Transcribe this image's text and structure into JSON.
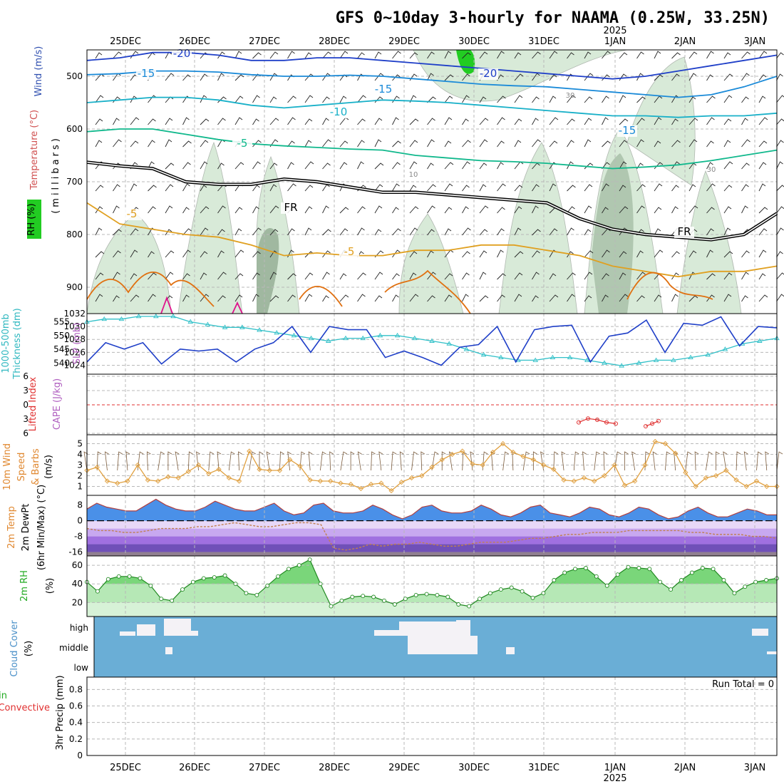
{
  "title": "GFS 0~10day 3-hourly for NAAMA (0.25W, 33.25N)",
  "dates": [
    "25DEC",
    "26DEC",
    "27DEC",
    "28DEC",
    "29DEC",
    "30DEC",
    "31DEC",
    "1JAN",
    "2JAN",
    "3JAN"
  ],
  "year_label": "2025",
  "colors": {
    "temp_hi": "#6e0aa8",
    "temp_20": "#1f3fc8",
    "temp_15": "#1a8ad8",
    "temp_10": "#18b0c8",
    "temp_5": "#10b88c",
    "freezing": "#000000",
    "temp_m5": "#e0a020",
    "temp_m10": "#e07010",
    "temp_m15": "#e0108c",
    "rh_fill": "#d8ead8",
    "rh_dark": "#a0b8a0",
    "rh_green": "#22cc22",
    "slp": "#1f3fc8",
    "thickness": "#30c0c8",
    "lifted": "#e03030",
    "wind10": "#e0a040",
    "temp2m": "#4a90e8",
    "cloud": "#6aaed6",
    "grid": "#b8b8b8"
  },
  "chart_data": [
    {
      "type": "line",
      "panel": "upper_air",
      "left_labels": [
        "Wind (m/s)",
        "Temperature (°C)",
        "RH (%)"
      ],
      "ylabel": "(millibars)",
      "yticks": [
        500,
        600,
        700,
        800,
        900
      ],
      "ylim": [
        450,
        950
      ],
      "isotherm_labels": [
        "-20",
        "-15",
        "-20",
        "-15",
        "-10",
        "-15",
        "-5",
        "-5",
        "-5",
        "FR",
        "FR"
      ],
      "rh_labels": [
        "30",
        "10",
        "30"
      ],
      "series": [
        {
          "name": "-20",
          "values": [
            470,
            465,
            455,
            455,
            460,
            470,
            470,
            465,
            465,
            470,
            475,
            480,
            485,
            490,
            495,
            500,
            505,
            500,
            490,
            480,
            470,
            460
          ]
        },
        {
          "name": "-15",
          "values": [
            497,
            495,
            490,
            490,
            492,
            497,
            500,
            500,
            498,
            500,
            505,
            510,
            515,
            518,
            520,
            525,
            530,
            535,
            540,
            535,
            520,
            500
          ]
        },
        {
          "name": "-10",
          "values": [
            550,
            545,
            540,
            540,
            545,
            555,
            560,
            555,
            550,
            545,
            547,
            550,
            555,
            560,
            565,
            570,
            575,
            575,
            578,
            575,
            575,
            570
          ]
        },
        {
          "name": "-5",
          "values": [
            605,
            600,
            600,
            610,
            620,
            628,
            632,
            635,
            638,
            640,
            650,
            655,
            660,
            662,
            665,
            670,
            675,
            672,
            668,
            660,
            650,
            640
          ]
        },
        {
          "name": "FR",
          "values": [
            663,
            670,
            675,
            700,
            705,
            705,
            695,
            700,
            710,
            720,
            720,
            725,
            730,
            735,
            740,
            770,
            790,
            800,
            805,
            810,
            800,
            760
          ]
        },
        {
          "name": "5",
          "values": [
            740,
            780,
            790,
            800,
            805,
            820,
            840,
            835,
            840,
            840,
            830,
            830,
            820,
            820,
            830,
            840,
            860,
            870,
            880,
            870,
            870,
            860
          ]
        }
      ]
    },
    {
      "type": "line",
      "panel": "slp_thickness",
      "left_labels": [
        "1000-500mb",
        "Thickness (dm)",
        "SLP (mb)"
      ],
      "yticks_left": [
        540,
        545,
        550,
        555
      ],
      "yticks_right": [
        1024,
        1026,
        1028,
        1030,
        1032
      ],
      "series": [
        {
          "name": "SLP",
          "values": [
            1024.5,
            1027.5,
            1026.5,
            1027.5,
            1024.2,
            1026.5,
            1026.2,
            1026.5,
            1024.5,
            1026.5,
            1027.5,
            1030,
            1026,
            1030,
            1029.5,
            1029.5,
            1025.2,
            1026.2,
            1025.2,
            1024,
            1026.8,
            1027.2,
            1030,
            1024.5,
            1029.5,
            1030,
            1030.2,
            1024.5,
            1028.5,
            1029,
            1031,
            1026,
            1030.5,
            1030.2,
            1031.5,
            1027,
            1030,
            1029.8
          ]
        },
        {
          "name": "Thickness",
          "values": [
            555,
            556,
            556,
            557,
            557,
            557,
            555,
            554,
            553,
            553,
            552,
            551,
            550,
            549,
            548,
            549,
            549,
            550,
            550,
            549,
            548,
            547,
            545,
            543,
            542,
            541,
            541,
            542,
            542,
            541,
            540,
            539,
            540,
            541,
            541,
            542,
            543,
            545,
            547,
            548,
            549
          ]
        }
      ]
    },
    {
      "type": "line",
      "panel": "cape_li",
      "left_labels": [
        "Lifted Index",
        "CAPE (J/kg)"
      ],
      "yticks": [
        "6",
        "3",
        "0",
        "3",
        "6"
      ],
      "series": [
        {
          "name": "Lifted Index",
          "values": [
            5.5,
            5.2,
            5.3,
            5.5,
            5.6,
            5.8,
            5.6,
            5.4,
            5.5
          ]
        }
      ]
    },
    {
      "type": "line",
      "panel": "wind10m",
      "left_labels": [
        "10m Wind",
        "Speed",
        "& Barbs",
        "(m/s)"
      ],
      "yticks": [
        1,
        2,
        3,
        4,
        5
      ],
      "ylim": [
        0.5,
        5.5
      ],
      "series": [
        {
          "name": "10m Wind Speed",
          "values": [
            2.5,
            2.8,
            1.5,
            1.3,
            1.5,
            3,
            1.6,
            1.5,
            1.9,
            1.8,
            2.4,
            3,
            2.2,
            2.6,
            1.8,
            1.5,
            4.3,
            2.6,
            2.5,
            2.5,
            3.5,
            2.9,
            1.6,
            1.5,
            1.5,
            1.3,
            1.2,
            0.8,
            1.2,
            1.3,
            0.6,
            1.4,
            1.8,
            2,
            2.8,
            3.5,
            4,
            4.3,
            3.1,
            3,
            4.2,
            5,
            4.2,
            3.8,
            3.5,
            3,
            2.6,
            1.6,
            1.5,
            1.8,
            1.5,
            2,
            3,
            1.1,
            1.5,
            3,
            5.2,
            5,
            4.1,
            2.3,
            1,
            1.8,
            2,
            2.5,
            1.6,
            1,
            1.5,
            1,
            1
          ]
        }
      ]
    },
    {
      "type": "area",
      "panel": "temp2m",
      "left_labels": [
        "2m Temp",
        "2m DewPt",
        "(6hr Min/Max) (°C)"
      ],
      "yticks": [
        8,
        0,
        -8,
        -16
      ],
      "ylim": [
        -18,
        13
      ],
      "series": [
        {
          "name": "2m Temp",
          "values": [
            6,
            9,
            7,
            6,
            5,
            5,
            8,
            11,
            8,
            6,
            5,
            5,
            7,
            10,
            8,
            6,
            5,
            5,
            7,
            9,
            5,
            3,
            4,
            8,
            9,
            5,
            4,
            4,
            5,
            8,
            6,
            3,
            1,
            3,
            7,
            8,
            5,
            4,
            4,
            5,
            8,
            6,
            3,
            2,
            4,
            7,
            8,
            4,
            3,
            2,
            4,
            7,
            6,
            3,
            2,
            4,
            7,
            6,
            3,
            1,
            2,
            5,
            7,
            4,
            2,
            2,
            4,
            6,
            5,
            3,
            3
          ]
        },
        {
          "name": "2m DewPt",
          "values": [
            -4,
            -5,
            -5,
            -6,
            -6,
            -5,
            -4,
            -4,
            -4,
            -3,
            -3,
            -2,
            -1,
            -2,
            -3,
            -3,
            -2,
            -1,
            -1,
            -2,
            -14,
            -15,
            -14,
            -12,
            -13,
            -12,
            -12,
            -11,
            -12,
            -13,
            -13,
            -12,
            -11,
            -11,
            -11,
            -10,
            -9,
            -9,
            -8,
            -7,
            -7,
            -6,
            -6,
            -6,
            -5,
            -5,
            -5,
            -5,
            -5,
            -6,
            -6,
            -7,
            -7,
            -7,
            -8,
            -8,
            -9
          ]
        }
      ]
    },
    {
      "type": "area",
      "panel": "rh2m",
      "left_labels": [
        "2m RH",
        "(%)"
      ],
      "yticks": [
        20,
        40,
        60
      ],
      "ylim": [
        5,
        70
      ],
      "series": [
        {
          "name": "2m RH",
          "values": [
            42,
            32,
            45,
            48,
            48,
            46,
            38,
            24,
            22,
            34,
            42,
            46,
            47,
            49,
            40,
            30,
            28,
            38,
            48,
            56,
            60,
            66,
            40,
            16,
            22,
            26,
            27,
            26,
            22,
            18,
            24,
            28,
            29,
            28,
            26,
            18,
            16,
            24,
            30,
            34,
            36,
            32,
            25,
            30,
            44,
            52,
            56,
            57,
            48,
            38,
            50,
            58,
            57,
            56,
            42,
            34,
            44,
            52,
            57,
            56,
            44,
            30,
            37,
            42,
            44,
            46
          ]
        }
      ]
    },
    {
      "type": "heatmap",
      "panel": "cloud",
      "left_labels": [
        "Cloud Cover",
        "(%)"
      ],
      "row_labels": [
        "high",
        "middle",
        "low"
      ]
    },
    {
      "type": "bar",
      "panel": "precip",
      "left_labels": [
        "Total / Rain",
        "Convective",
        "3hr Precip (mm)"
      ],
      "yticks": [
        "0",
        "0.2",
        "0.4",
        "0.6",
        "0.8"
      ],
      "ylim": [
        0,
        0.95
      ],
      "values": [],
      "run_total": "Run Total = 0"
    }
  ]
}
